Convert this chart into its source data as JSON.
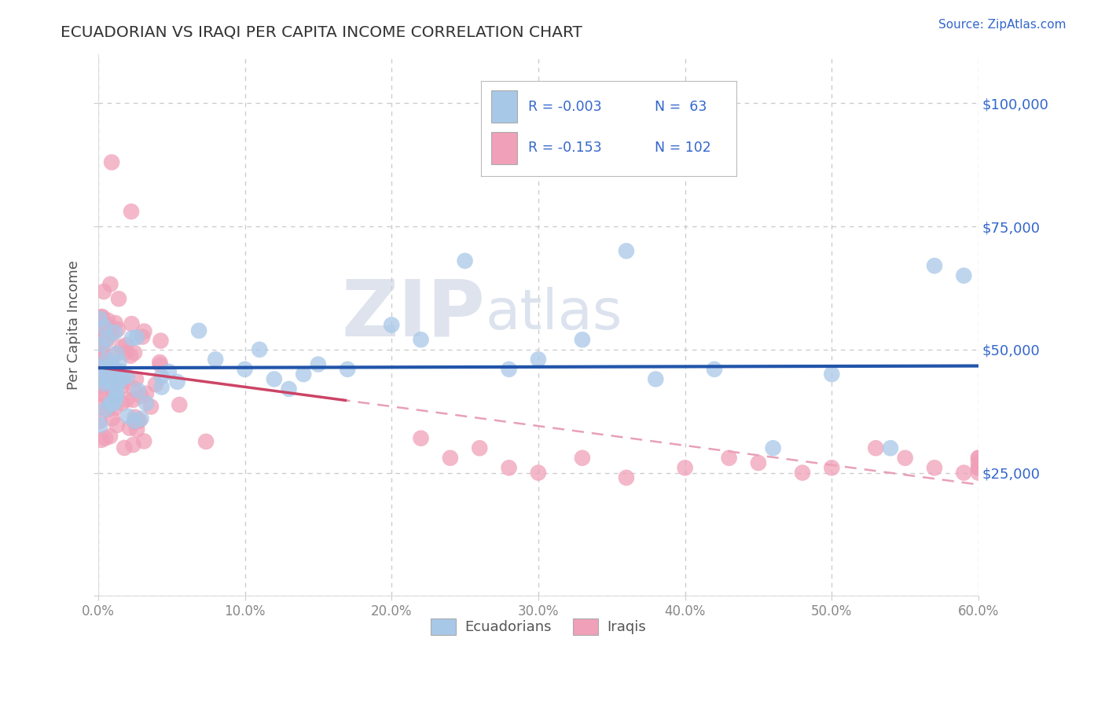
{
  "title": "ECUADORIAN VS IRAQI PER CAPITA INCOME CORRELATION CHART",
  "source_text": "Source: ZipAtlas.com",
  "ylabel": "Per Capita Income",
  "watermark_zip": "ZIP",
  "watermark_atlas": "atlas",
  "legend_r_ecuador": "-0.003",
  "legend_n_ecuador": "63",
  "legend_r_iraq": "-0.153",
  "legend_n_iraq": "102",
  "ecuador_color": "#a8c8e8",
  "iraq_color": "#f0a0b8",
  "ecuador_line_color": "#2255aa",
  "iraq_solid_line_color": "#cc4466",
  "iraq_dash_line_color": "#e8a0b8",
  "background_color": "#ffffff",
  "grid_color": "#cccccc",
  "xlim": [
    0.0,
    0.6
  ],
  "ylim": [
    0,
    110000
  ],
  "yticks": [
    0,
    25000,
    50000,
    75000,
    100000
  ],
  "xticks": [
    0.0,
    0.1,
    0.2,
    0.3,
    0.4,
    0.5,
    0.6
  ],
  "xtick_labels": [
    "0.0%",
    "10.0%",
    "20.0%",
    "30.0%",
    "40.0%",
    "50.0%",
    "60.0%"
  ],
  "ytick_labels": [
    "",
    "$25,000",
    "$50,000",
    "$75,000",
    "$100,000"
  ],
  "legend_text_color": "#3366cc",
  "title_color": "#333333",
  "source_color": "#3366cc",
  "axis_label_color": "#555555",
  "tick_color": "#888888"
}
